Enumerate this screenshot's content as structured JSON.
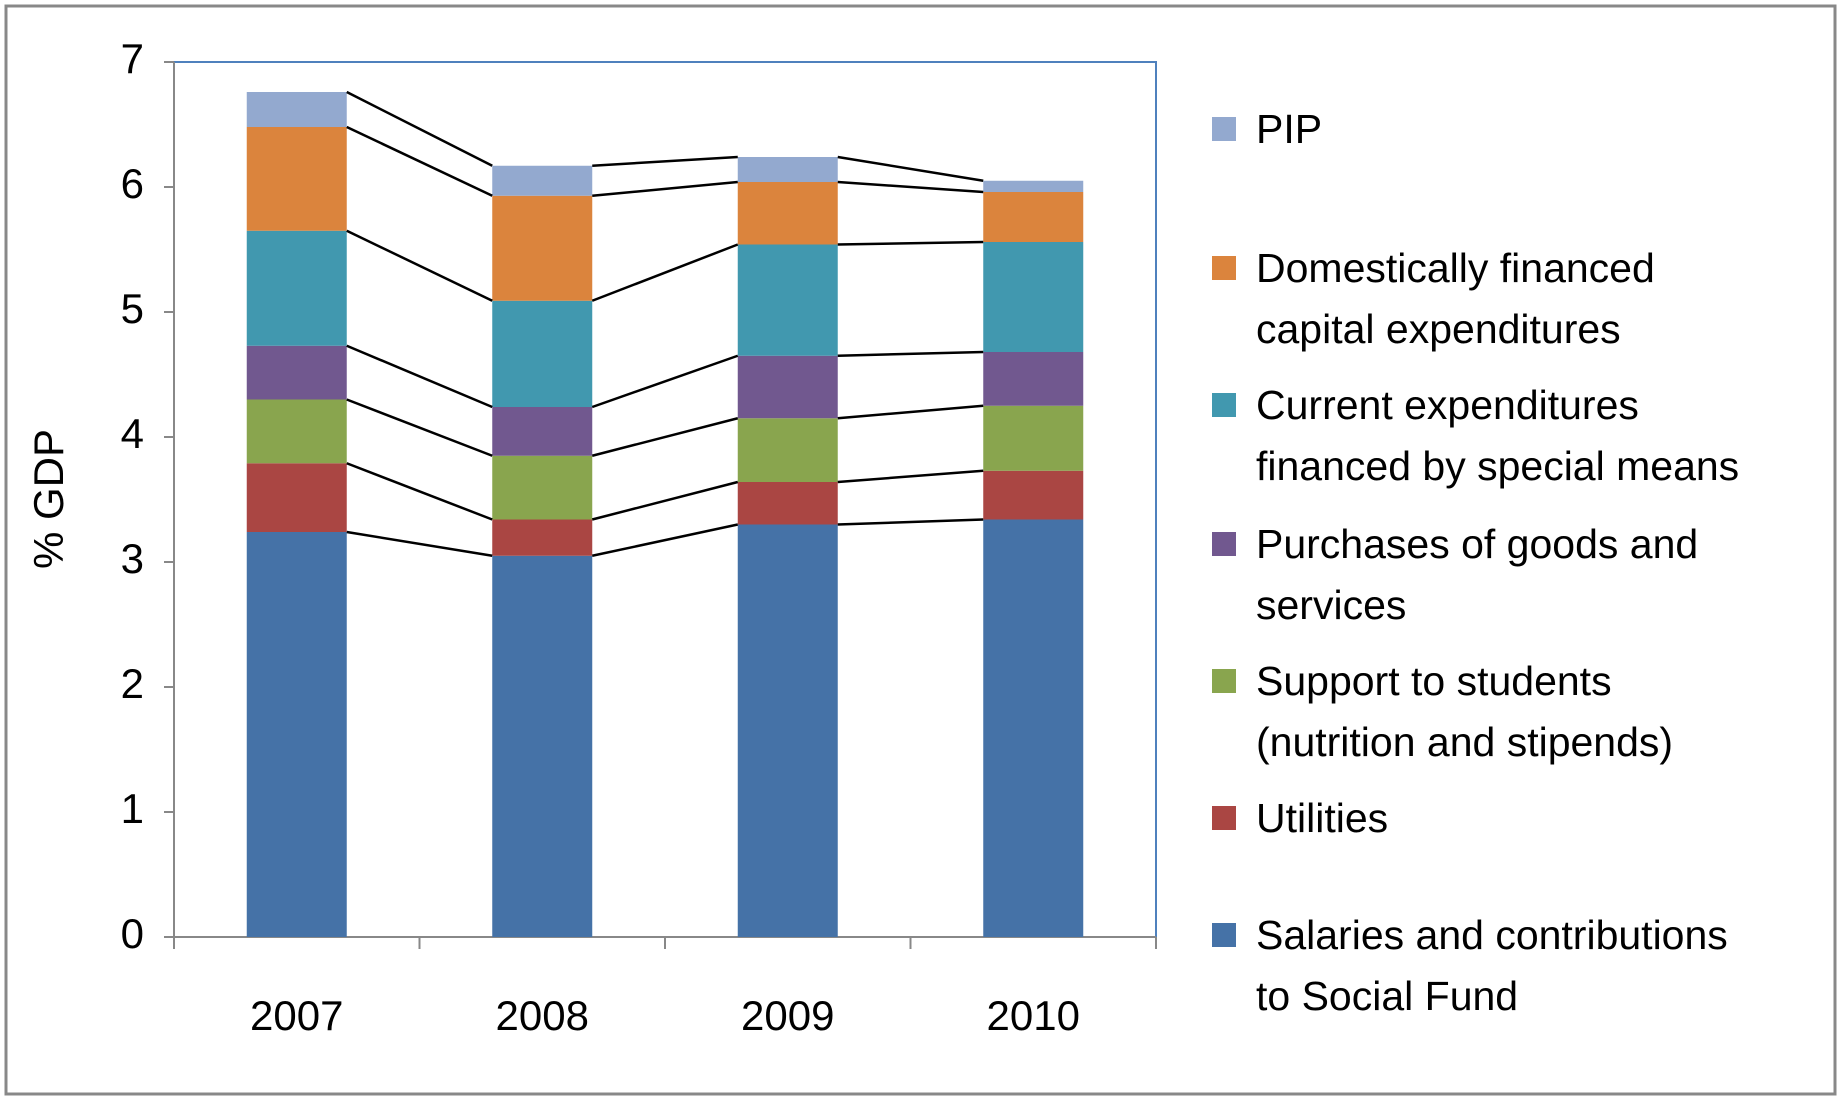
{
  "chart_data": {
    "type": "stacked_bar",
    "y_label": "% GDP",
    "categories": [
      "2007",
      "2008",
      "2009",
      "2010"
    ],
    "series": [
      {
        "name": "Salaries and contributions\nto Social Fund",
        "color": "#4572a7",
        "values": [
          3.24,
          3.05,
          3.3,
          3.34
        ]
      },
      {
        "name": "Utilities",
        "color": "#aa4643",
        "values": [
          0.55,
          0.29,
          0.34,
          0.39
        ]
      },
      {
        "name": "Support to students\n(nutrition and stipends)",
        "color": "#89a54e",
        "values": [
          0.51,
          0.51,
          0.51,
          0.52
        ]
      },
      {
        "name": "Purchases of goods and\nservices",
        "color": "#71588f",
        "values": [
          0.43,
          0.39,
          0.5,
          0.43
        ]
      },
      {
        "name": "Current expenditures\nfinanced by special means",
        "color": "#4198af",
        "values": [
          0.92,
          0.85,
          0.89,
          0.88
        ]
      },
      {
        "name": "Domestically financed\ncapital expenditures",
        "color": "#db843d",
        "values": [
          0.83,
          0.84,
          0.5,
          0.4
        ]
      },
      {
        "name": "PIP",
        "color": "#93a9cf",
        "values": [
          0.28,
          0.24,
          0.2,
          0.09
        ]
      }
    ],
    "ylim": [
      0,
      7
    ],
    "yticks": [
      0,
      1,
      2,
      3,
      4,
      5,
      6,
      7
    ],
    "legend": "right",
    "connectors": true
  }
}
